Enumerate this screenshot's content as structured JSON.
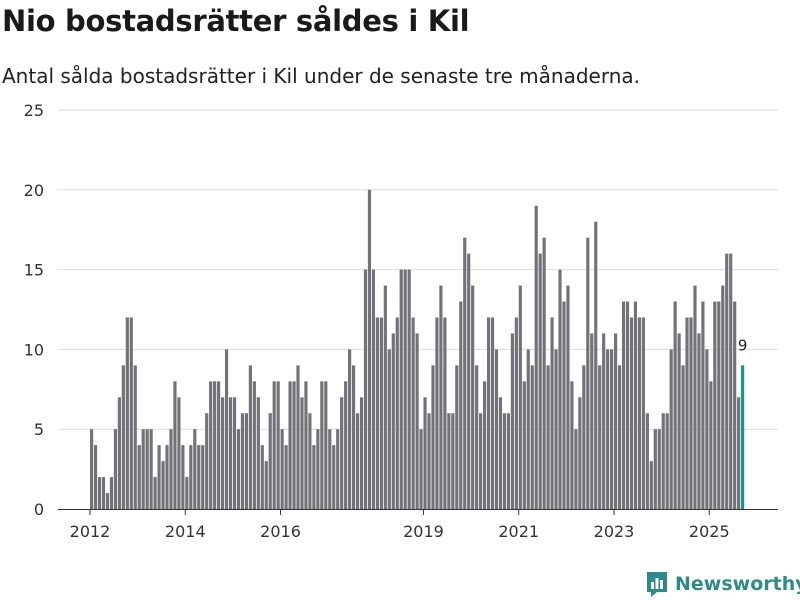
{
  "header": {
    "title": "Nio bostadsrätter såldes i Kil",
    "subtitle": "Antal sålda bostadsrätter i Kil under de senaste tre månaderna."
  },
  "brand": {
    "name": "Newsworthy"
  },
  "colors": {
    "bar": "#737278",
    "highlight": "#14968e",
    "grid": "#dddddd",
    "axis": "#333333",
    "brand": "#2e8b87"
  },
  "chart_data": {
    "type": "bar",
    "title": "Nio bostadsrätter såldes i Kil",
    "subtitle": "Antal sålda bostadsrätter i Kil under de senaste tre månaderna.",
    "xlabel": "",
    "ylabel": "",
    "ylim": [
      0,
      25
    ],
    "yticks": [
      0,
      5,
      10,
      15,
      20,
      25
    ],
    "start": "2012-01",
    "x_tick_labels": [
      "2012",
      "2014",
      "2016",
      "2019",
      "2021",
      "2023",
      "2025"
    ],
    "values": [
      5,
      4,
      2,
      2,
      1,
      2,
      5,
      7,
      9,
      12,
      12,
      9,
      4,
      5,
      5,
      5,
      2,
      4,
      3,
      4,
      5,
      8,
      7,
      4,
      2,
      4,
      5,
      4,
      4,
      6,
      8,
      8,
      8,
      7,
      10,
      7,
      7,
      5,
      6,
      6,
      9,
      8,
      7,
      4,
      3,
      6,
      8,
      8,
      5,
      4,
      8,
      8,
      9,
      7,
      8,
      6,
      4,
      5,
      8,
      8,
      5,
      4,
      5,
      7,
      8,
      10,
      9,
      6,
      7,
      15,
      20,
      15,
      12,
      12,
      14,
      10,
      11,
      12,
      15,
      15,
      15,
      12,
      11,
      5,
      7,
      6,
      9,
      12,
      14,
      12,
      6,
      6,
      9,
      13,
      17,
      16,
      14,
      9,
      6,
      8,
      12,
      12,
      10,
      7,
      6,
      6,
      11,
      12,
      14,
      8,
      10,
      9,
      19,
      16,
      17,
      9,
      12,
      10,
      15,
      13,
      14,
      8,
      5,
      7,
      9,
      17,
      11,
      18,
      9,
      11,
      10,
      10,
      11,
      9,
      13,
      13,
      12,
      13,
      12,
      12,
      6,
      3,
      5,
      5,
      6,
      6,
      10,
      13,
      11,
      9,
      12,
      12,
      14,
      11,
      13,
      10,
      8,
      13,
      13,
      14,
      16,
      16,
      13,
      7,
      9
    ],
    "highlight_last": true,
    "annotation": {
      "label": "9",
      "value": 9
    }
  }
}
